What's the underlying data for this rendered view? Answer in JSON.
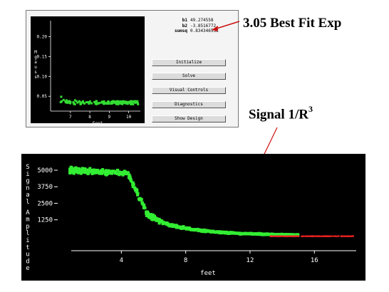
{
  "fit_window": {
    "params": [
      {
        "name": "b1",
        "value": "49.274558"
      },
      {
        "name": "b2",
        "value": "-3.8516772"
      },
      {
        "name": "sumsq",
        "value": "0.834346533"
      }
    ],
    "buttons": [
      {
        "label": "Initialize"
      },
      {
        "label": "Solve"
      },
      {
        "label": "Visual Controls"
      },
      {
        "label": "Diagnostics"
      },
      {
        "label": "Show Design"
      }
    ],
    "plot": {
      "type": "scatter",
      "xlabel": "Feet",
      "ylabel": "Mgauss",
      "xticks": [
        "7",
        "8",
        "9",
        "10"
      ],
      "yticks": [
        "0.20",
        "0.15",
        "0.10",
        "0.05"
      ],
      "xlim": [
        6.2,
        10.6
      ],
      "ylim": [
        0.02,
        0.24
      ],
      "point_color": "#33dd33",
      "background": "#000000"
    }
  },
  "callouts": {
    "best_fit": "3.05 Best Fit Exp",
    "signal_text": "Signal 1/R",
    "signal_superscript": "3",
    "arrow_color": "#cc1111"
  },
  "chart_data": {
    "type": "scatter",
    "xlabel": "feet",
    "ylabel": "Signal Amplitude",
    "xticks": [
      "4",
      "8",
      "12",
      "16"
    ],
    "yticks": [
      "5000",
      "3750",
      "2500",
      "1250"
    ],
    "xlim": [
      0,
      18.6
    ],
    "ylim": [
      -600,
      5700
    ],
    "grid": false,
    "series": [
      {
        "color": "#33ee33",
        "x": [
          1,
          2,
          3,
          4,
          4.5,
          5,
          5.5,
          6,
          7,
          8,
          9,
          10,
          11,
          12,
          13,
          14
        ],
        "y": [
          5100,
          5050,
          4950,
          4800,
          4400,
          3000,
          1800,
          1300,
          800,
          500,
          300,
          200,
          120,
          80,
          50,
          40
        ]
      },
      {
        "color": "#ee2222",
        "x": [
          14,
          15,
          16,
          17,
          18
        ],
        "y": [
          30,
          20,
          15,
          10,
          10
        ]
      }
    ]
  }
}
